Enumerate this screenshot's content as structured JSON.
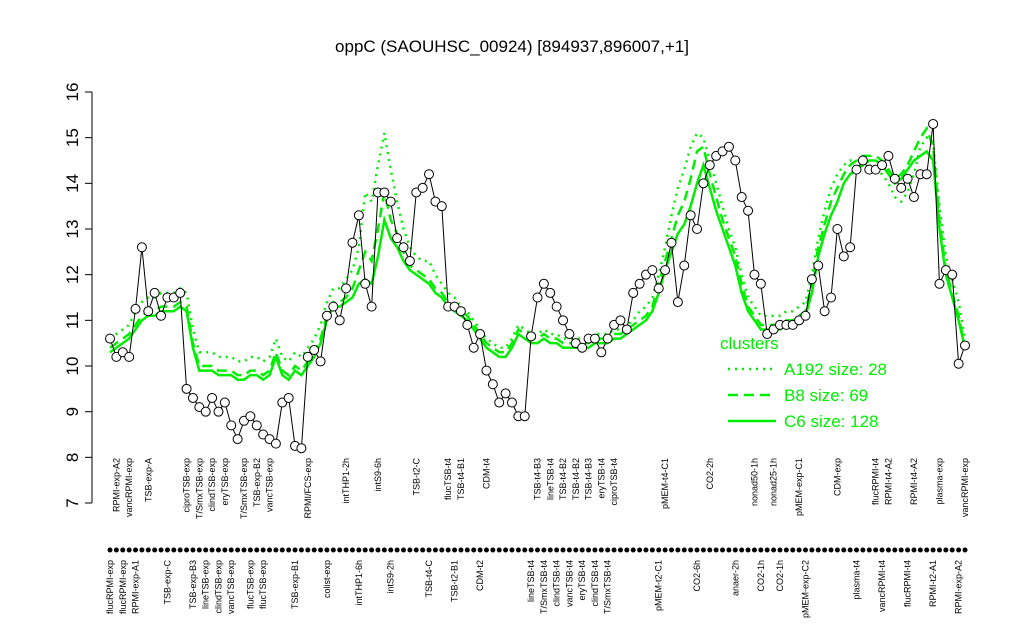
{
  "chart_data": {
    "type": "line",
    "title": "oppC (SAOUHSC_00924) [894937,896007,+1]",
    "legend_title": "clusters",
    "legend": "right",
    "ylim": [
      7,
      16
    ],
    "yticks": [
      7,
      8,
      9,
      10,
      11,
      12,
      13,
      14,
      15,
      16
    ],
    "categories": [
      "flucRPMI-exp",
      "RPMI-exp-A2",
      "flucRPMI-exp",
      "vancRPMI-exp",
      "RPMI-exp-A1",
      null,
      "TSB-exp-A",
      null,
      null,
      "TSB-exp-C",
      null,
      null,
      "ciproTSB-exp",
      "TSB-exp-B3",
      "T/SmxTSB-exp",
      "lineTSB-exp",
      "clindTSB-exp",
      "clindTSB-exp",
      "eryTSB-exp",
      "vancTSB-exp",
      null,
      "T/SmxTSB-exp",
      "flucTSB-exp",
      "TSB-exp-B2",
      "flucTSB-exp",
      "vancTSB-exp",
      null,
      null,
      null,
      "TSB-exp-B1",
      null,
      "RPMI/FCS-exp",
      null,
      null,
      "colist-exp",
      null,
      null,
      "intTHP1-2h",
      null,
      "intTHP1-6h",
      null,
      null,
      "intS9-6h",
      null,
      "intS9-2h",
      null,
      null,
      null,
      "TSB-t2-C",
      null,
      "TSB-t4-C",
      null,
      null,
      "flucTSB-t4",
      "TSB-t2-B1",
      "TSB-t4-B1",
      null,
      null,
      "CDM-t2",
      "CDM-t4",
      null,
      null,
      null,
      null,
      null,
      null,
      "lineTSB-t4",
      "TSB-t4-B3",
      "T/SmxTSB-t4",
      "lineTSB-t4",
      "clindTSB-t4",
      "TSB-t4-B2",
      "vancTSB-t4",
      "TSB-t4-B2",
      "eryTSB-t4",
      "TSB-t4-B3",
      "clindTSB-t4",
      "eryTSB-t4",
      "T/SmxTSB-t4",
      "ciproTSB-t4",
      null,
      null,
      null,
      null,
      null,
      null,
      "pMEM-t2-C1",
      "pMEM-t4-C1",
      null,
      null,
      null,
      null,
      "CO2-6h",
      null,
      "CO2-2h",
      null,
      null,
      null,
      "anaer-2h",
      null,
      null,
      "nonad50-1h",
      "CO2-1h",
      null,
      "nonad25-1h",
      "CO2-1h",
      null,
      null,
      "pMEM-exp-C1",
      "pMEM-exp-C2",
      null,
      null,
      null,
      null,
      "CDM-exp",
      null,
      null,
      "plasma-t4",
      null,
      null,
      "flucRPMI-t4",
      "vancRPMI-t4",
      "RPMI-t4-A2",
      null,
      null,
      "flucRPMI-t4",
      "RPMI-t4-A2",
      null,
      null,
      "RPMI-t2-A1",
      "plasma-exp",
      null,
      null,
      "RPMI-exp-A2",
      "vancRPMI-exp"
    ],
    "values": [
      10.6,
      10.2,
      10.3,
      10.2,
      11.25,
      12.6,
      11.2,
      11.6,
      11.1,
      11.5,
      11.5,
      11.6,
      9.5,
      9.3,
      9.1,
      9.0,
      9.3,
      9.0,
      9.2,
      8.7,
      8.4,
      8.8,
      8.9,
      8.7,
      8.5,
      8.4,
      8.3,
      9.2,
      9.3,
      8.25,
      8.2,
      10.2,
      10.35,
      10.1,
      11.1,
      11.3,
      11.0,
      11.7,
      12.7,
      13.3,
      11.8,
      11.3,
      13.8,
      13.8,
      13.6,
      12.8,
      12.6,
      12.3,
      13.8,
      13.9,
      14.2,
      13.6,
      13.5,
      11.3,
      11.3,
      11.2,
      10.9,
      10.4,
      10.7,
      9.9,
      9.6,
      9.2,
      9.4,
      9.2,
      8.9,
      8.9,
      10.65,
      11.5,
      11.8,
      11.6,
      11.3,
      11.0,
      10.7,
      10.5,
      10.4,
      10.6,
      10.6,
      10.3,
      10.6,
      10.9,
      11.0,
      10.8,
      11.6,
      11.8,
      12.0,
      12.1,
      11.7,
      12.1,
      12.7,
      11.4,
      12.2,
      13.3,
      13.0,
      14.0,
      14.4,
      14.6,
      14.7,
      14.8,
      14.5,
      13.7,
      13.4,
      12.0,
      11.8,
      10.7,
      10.8,
      10.9,
      10.9,
      10.9,
      11.0,
      11.1,
      11.9,
      12.2,
      11.2,
      11.5,
      13.0,
      12.4,
      12.6,
      14.3,
      14.5,
      14.3,
      14.3,
      14.4,
      14.6,
      14.1,
      13.9,
      14.1,
      13.7,
      14.2,
      14.2,
      15.3,
      11.8,
      12.1,
      12.0,
      10.05,
      10.45
    ],
    "color": "#000000",
    "series": [
      {
        "name": "A192 size: 28",
        "color": "#00ee00",
        "dash": "dotted",
        "values": [
          10.6,
          10.7,
          10.8,
          10.9,
          11.2,
          11.4,
          11.5,
          11.5,
          11.6,
          11.6,
          11.6,
          11.7,
          11.6,
          10.8,
          10.3,
          10.3,
          10.3,
          10.2,
          10.2,
          10.2,
          10.1,
          10.1,
          10.2,
          10.2,
          10.1,
          10.2,
          10.6,
          10.2,
          10.1,
          10.3,
          10.2,
          10.4,
          10.6,
          10.9,
          11.4,
          11.7,
          11.7,
          11.9,
          12.1,
          12.6,
          13.8,
          13.6,
          14.4,
          15.1,
          14.3,
          13.6,
          13.0,
          12.6,
          12.4,
          12.3,
          12.3,
          12.0,
          11.8,
          11.6,
          11.5,
          11.3,
          11.2,
          11.0,
          10.8,
          10.6,
          10.5,
          10.4,
          10.4,
          10.6,
          10.9,
          10.8,
          10.7,
          10.7,
          10.8,
          10.7,
          10.7,
          10.6,
          10.6,
          10.6,
          10.6,
          10.6,
          10.7,
          10.7,
          10.7,
          10.8,
          10.8,
          10.9,
          11.0,
          11.2,
          11.3,
          11.5,
          12.0,
          12.6,
          13.3,
          13.9,
          14.3,
          14.8,
          15.1,
          15.0,
          14.5,
          14.0,
          13.5,
          13.0,
          12.6,
          12.0,
          11.5,
          11.3,
          11.1,
          11.1,
          11.1,
          11.1,
          11.2,
          11.2,
          11.3,
          11.4,
          12.0,
          12.8,
          13.4,
          13.9,
          14.2,
          14.4,
          14.5,
          14.5,
          14.5,
          14.4,
          14.3,
          14.2,
          14.0,
          13.7,
          13.6,
          13.8,
          14.2,
          14.8,
          15.0,
          14.9,
          13.5,
          12.4,
          11.9,
          11.4,
          10.6
        ]
      },
      {
        "name": "B8 size: 69",
        "color": "#00ee00",
        "dash": "dashed",
        "values": [
          10.4,
          10.5,
          10.6,
          10.7,
          10.9,
          11.1,
          11.2,
          11.2,
          11.3,
          11.3,
          11.3,
          11.4,
          11.3,
          10.5,
          10.0,
          10.0,
          10.0,
          9.9,
          9.9,
          9.9,
          9.8,
          9.8,
          9.9,
          9.9,
          9.8,
          9.9,
          10.3,
          9.9,
          9.8,
          10.0,
          9.9,
          10.1,
          10.3,
          10.6,
          11.1,
          11.4,
          11.4,
          11.5,
          11.7,
          12.1,
          12.5,
          12.3,
          13.0,
          13.8,
          13.2,
          12.9,
          12.5,
          12.2,
          12.1,
          12.0,
          11.9,
          11.7,
          11.6,
          11.4,
          11.3,
          11.2,
          11.1,
          10.9,
          10.7,
          10.5,
          10.4,
          10.3,
          10.3,
          10.5,
          10.8,
          10.7,
          10.6,
          10.6,
          10.7,
          10.6,
          10.6,
          10.5,
          10.5,
          10.5,
          10.5,
          10.5,
          10.6,
          10.6,
          10.6,
          10.7,
          10.7,
          10.8,
          10.9,
          11.0,
          11.1,
          11.3,
          11.8,
          12.3,
          12.8,
          13.3,
          13.6,
          14.1,
          14.7,
          14.8,
          14.2,
          13.7,
          13.2,
          12.8,
          12.4,
          11.8,
          11.3,
          11.1,
          10.9,
          10.9,
          10.9,
          10.9,
          11.0,
          11.0,
          11.1,
          11.2,
          11.8,
          12.6,
          13.1,
          13.6,
          13.9,
          14.2,
          14.4,
          14.5,
          14.6,
          14.6,
          14.6,
          14.5,
          14.3,
          14.1,
          14.2,
          14.4,
          14.7,
          15.0,
          15.2,
          14.8,
          13.2,
          12.1,
          11.6,
          11.1,
          10.4
        ]
      },
      {
        "name": "C6 size: 128",
        "color": "#00ee00",
        "dash": "solid",
        "values": [
          10.3,
          10.4,
          10.5,
          10.6,
          10.8,
          11.0,
          11.1,
          11.1,
          11.2,
          11.2,
          11.2,
          11.3,
          11.2,
          10.4,
          9.9,
          9.9,
          9.9,
          9.8,
          9.8,
          9.8,
          9.7,
          9.7,
          9.8,
          9.8,
          9.7,
          9.8,
          10.2,
          9.8,
          9.7,
          9.9,
          9.8,
          10.0,
          10.2,
          10.5,
          11.0,
          11.3,
          11.3,
          11.4,
          11.5,
          11.8,
          11.9,
          11.8,
          12.4,
          13.2,
          12.8,
          12.6,
          12.3,
          12.1,
          12.0,
          11.9,
          11.8,
          11.6,
          11.5,
          11.3,
          11.2,
          11.1,
          11.0,
          10.8,
          10.6,
          10.4,
          10.3,
          10.2,
          10.2,
          10.4,
          10.7,
          10.6,
          10.5,
          10.5,
          10.6,
          10.5,
          10.5,
          10.4,
          10.4,
          10.4,
          10.4,
          10.4,
          10.5,
          10.5,
          10.5,
          10.6,
          10.6,
          10.7,
          10.8,
          10.9,
          11.0,
          11.2,
          11.6,
          12.1,
          12.5,
          12.9,
          13.1,
          13.5,
          14.0,
          14.4,
          13.9,
          13.4,
          13.0,
          12.6,
          12.2,
          11.6,
          11.2,
          11.0,
          10.8,
          10.8,
          10.8,
          10.8,
          10.9,
          10.9,
          11.0,
          11.1,
          11.6,
          12.4,
          12.9,
          13.3,
          13.6,
          14.0,
          14.2,
          14.3,
          14.4,
          14.5,
          14.5,
          14.4,
          14.2,
          14.0,
          14.1,
          14.3,
          14.5,
          14.6,
          14.7,
          14.5,
          13.0,
          12.0,
          11.5,
          11.0,
          10.4
        ]
      }
    ]
  }
}
